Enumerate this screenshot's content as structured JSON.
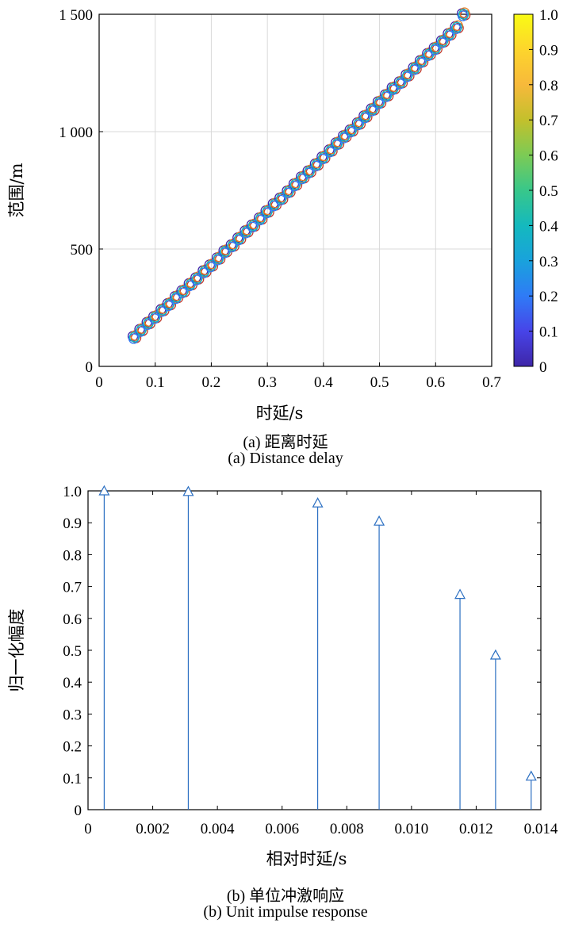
{
  "chart_data": [
    {
      "type": "scatter",
      "title": "",
      "xlabel": "时延/s",
      "ylabel": "范围/m",
      "xlim": [
        0,
        0.7
      ],
      "ylim": [
        0,
        1500
      ],
      "xticks": [
        "0",
        "0.1",
        "0.2",
        "0.3",
        "0.4",
        "0.5",
        "0.6",
        "0.7"
      ],
      "yticks": [
        "0",
        "500",
        "1 000",
        "1 500"
      ],
      "grid": true,
      "colorbar": {
        "range": [
          0,
          1
        ],
        "ticks": [
          "0",
          "0.1",
          "0.2",
          "0.3",
          "0.4",
          "0.5",
          "0.6",
          "0.7",
          "0.8",
          "0.9",
          "1.0"
        ],
        "colormap": [
          "#3e26a8",
          "#4744e8",
          "#2f7bf6",
          "#19a2dc",
          "#14b9be",
          "#38c78a",
          "#7ccb55",
          "#c3c02c",
          "#f7b93b",
          "#fdd52c",
          "#f9fb14"
        ]
      },
      "series": [
        {
          "x": [
            0.063,
            0.075,
            0.088,
            0.1,
            0.113,
            0.125,
            0.138,
            0.15,
            0.163,
            0.175,
            0.188,
            0.2,
            0.213,
            0.225,
            0.238,
            0.25,
            0.263,
            0.275,
            0.288,
            0.3,
            0.313,
            0.325,
            0.338,
            0.35,
            0.363,
            0.375,
            0.388,
            0.4,
            0.413,
            0.425,
            0.438,
            0.45,
            0.463,
            0.475,
            0.488,
            0.5,
            0.513,
            0.525,
            0.538,
            0.55,
            0.563,
            0.575,
            0.588,
            0.6,
            0.613,
            0.625,
            0.638,
            0.65
          ],
          "y": [
            125,
            155,
            185,
            210,
            240,
            265,
            295,
            320,
            350,
            375,
            405,
            430,
            460,
            490,
            515,
            545,
            575,
            600,
            630,
            660,
            690,
            715,
            745,
            775,
            805,
            830,
            860,
            890,
            920,
            950,
            980,
            1005,
            1035,
            1065,
            1095,
            1125,
            1155,
            1185,
            1210,
            1240,
            1270,
            1300,
            1330,
            1355,
            1385,
            1415,
            1445,
            1500
          ]
        }
      ],
      "marker_colors": [
        "#c0392b",
        "#3e26a8",
        "#e67e22",
        "#2f7bf6",
        "#14b9be"
      ]
    },
    {
      "type": "stem",
      "title": "",
      "xlabel": "相对时延/s",
      "ylabel": "归一化幅度",
      "xlim": [
        0,
        0.014
      ],
      "ylim": [
        0,
        1.0
      ],
      "xticks": [
        "0",
        "0.002",
        "0.004",
        "0.006",
        "0.008",
        "0.010",
        "0.012",
        "0.014"
      ],
      "yticks": [
        "0",
        "0.1",
        "0.2",
        "0.3",
        "0.4",
        "0.5",
        "0.6",
        "0.7",
        "0.8",
        "0.9",
        "1.0"
      ],
      "grid": false,
      "marker": "triangle",
      "color": "#2b6fc2",
      "series": [
        {
          "x": [
            0.0005,
            0.0031,
            0.0071,
            0.009,
            0.0115,
            0.0126,
            0.0137
          ],
          "y": [
            1.0,
            0.998,
            0.962,
            0.905,
            0.675,
            0.485,
            0.105
          ]
        }
      ]
    }
  ],
  "captions": {
    "a_cn": "(a) 距离时延",
    "a_en": "(a) Distance delay",
    "b_cn": "(b) 单位冲激响应",
    "b_en": "(b) Unit impulse response"
  }
}
